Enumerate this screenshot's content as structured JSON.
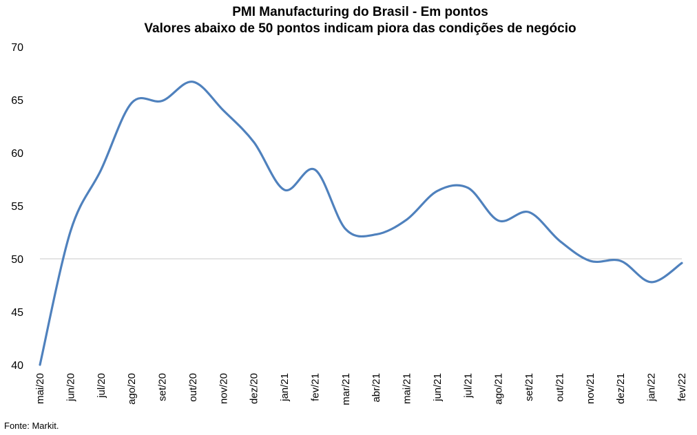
{
  "chart_data": {
    "type": "line",
    "title": "PMI Manufacturing do Brasil - Em pontos",
    "subtitle": "Valores abaixo de 50 pontos indicam piora das condições de negócio",
    "xlabel": "",
    "ylabel": "",
    "ylim": [
      40,
      70
    ],
    "yticks": [
      40,
      45,
      50,
      55,
      60,
      65,
      70
    ],
    "reference_line": 50,
    "grid": false,
    "categories": [
      "mai/20",
      "jun/20",
      "jul/20",
      "ago/20",
      "set/20",
      "out/20",
      "nov/20",
      "dez/20",
      "jan/21",
      "fev/21",
      "mar/21",
      "abr/21",
      "mai/21",
      "jun/21",
      "jul/21",
      "ago/21",
      "set/21",
      "out/21",
      "nov/21",
      "dez/21",
      "jan/22",
      "fev/22"
    ],
    "series": [
      {
        "color": "#4f81bd",
        "values": [
          40.0,
          52.6,
          58.4,
          64.7,
          64.9,
          66.7,
          64.0,
          61.0,
          56.5,
          58.4,
          52.8,
          52.3,
          53.7,
          56.4,
          56.7,
          53.6,
          54.4,
          51.7,
          49.8,
          49.8,
          47.8,
          49.6
        ]
      }
    ]
  },
  "source": "Fonte: Markit."
}
